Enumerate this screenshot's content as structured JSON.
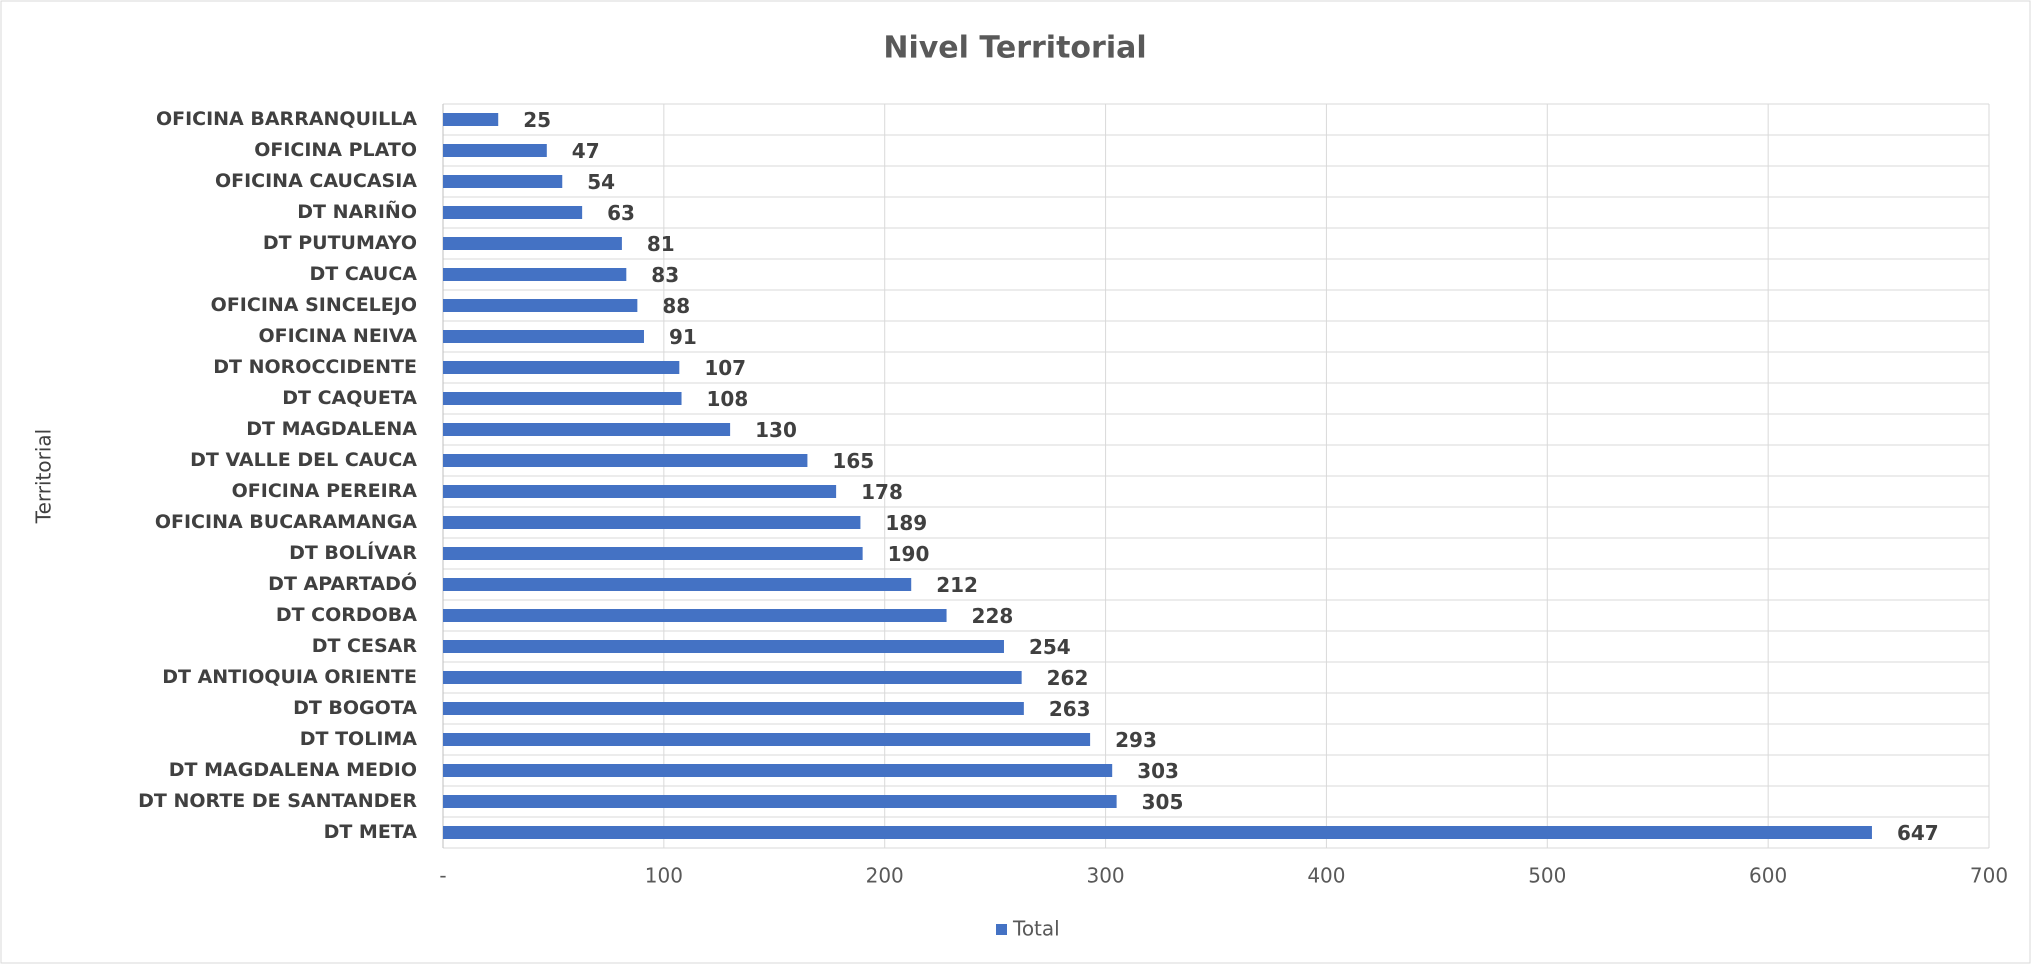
{
  "chart_data": {
    "type": "bar",
    "orientation": "horizontal",
    "title": "Nivel Territorial",
    "ylabel": "Territorial",
    "categories": [
      "OFICINA BARRANQUILLA",
      "OFICINA PLATO",
      "OFICINA CAUCASIA",
      "DT NARIÑO",
      "DT PUTUMAYO",
      "DT CAUCA",
      "OFICINA SINCELEJO",
      "OFICINA NEIVA",
      "DT NOROCCIDENTE",
      "DT CAQUETA",
      "DT MAGDALENA",
      "DT VALLE DEL CAUCA",
      "OFICINA PEREIRA",
      "OFICINA BUCARAMANGA",
      "DT BOLÍVAR",
      "DT APARTADÓ",
      "DT CORDOBA",
      "DT CESAR",
      "DT ANTIOQUIA ORIENTE",
      "DT BOGOTA",
      "DT TOLIMA",
      "DT MAGDALENA MEDIO",
      "DT NORTE DE SANTANDER",
      "DT META"
    ],
    "series": [
      {
        "name": "Total",
        "color": "#4472c4",
        "values": [
          25,
          47,
          54,
          63,
          81,
          83,
          88,
          91,
          107,
          108,
          130,
          165,
          178,
          189,
          190,
          212,
          228,
          254,
          262,
          263,
          293,
          303,
          305,
          647
        ]
      }
    ],
    "xlim": [
      0,
      700
    ],
    "xticks": [
      {
        "value": 0,
        "label": "-"
      },
      100,
      200,
      300,
      400,
      500,
      600,
      700
    ],
    "grid": true,
    "legend": "bottom"
  }
}
